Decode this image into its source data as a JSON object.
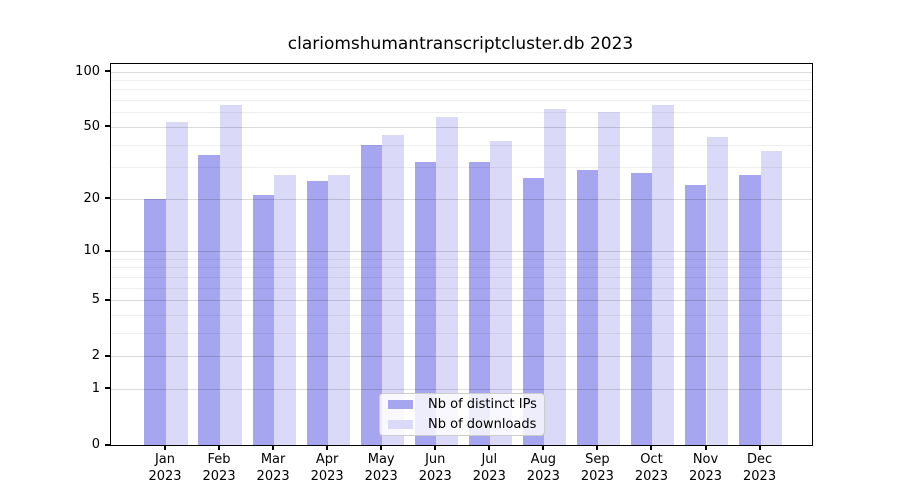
{
  "figure": {
    "background": "#ffffff"
  },
  "chart_data": {
    "type": "bar",
    "title": "clariomshumantranscriptcluster.db 2023",
    "categories": [
      "Jan",
      "Feb",
      "Mar",
      "Apr",
      "May",
      "Jun",
      "Jul",
      "Aug",
      "Sep",
      "Oct",
      "Nov",
      "Dec"
    ],
    "year_label": "2023",
    "series": [
      {
        "name": "Nb of distinct IPs",
        "color": "#a5a5f0",
        "values": [
          20,
          35,
          21,
          25,
          40,
          32,
          32,
          26,
          29,
          28,
          24,
          27
        ]
      },
      {
        "name": "Nb of downloads",
        "color": "#dadaf8",
        "values": [
          53,
          66,
          27,
          27,
          45,
          57,
          42,
          63,
          60,
          66,
          44,
          37
        ]
      }
    ],
    "scale": "log1p",
    "ylim": [
      0,
      110
    ],
    "y_major_ticks": [
      0,
      1,
      2,
      5,
      10,
      20,
      50,
      100
    ],
    "y_minor_gridlines": [
      3,
      4,
      6,
      7,
      8,
      9,
      30,
      40,
      60,
      70,
      80,
      90
    ],
    "grid": true,
    "legend_position": "lower center",
    "xlabel": "",
    "ylabel": ""
  }
}
